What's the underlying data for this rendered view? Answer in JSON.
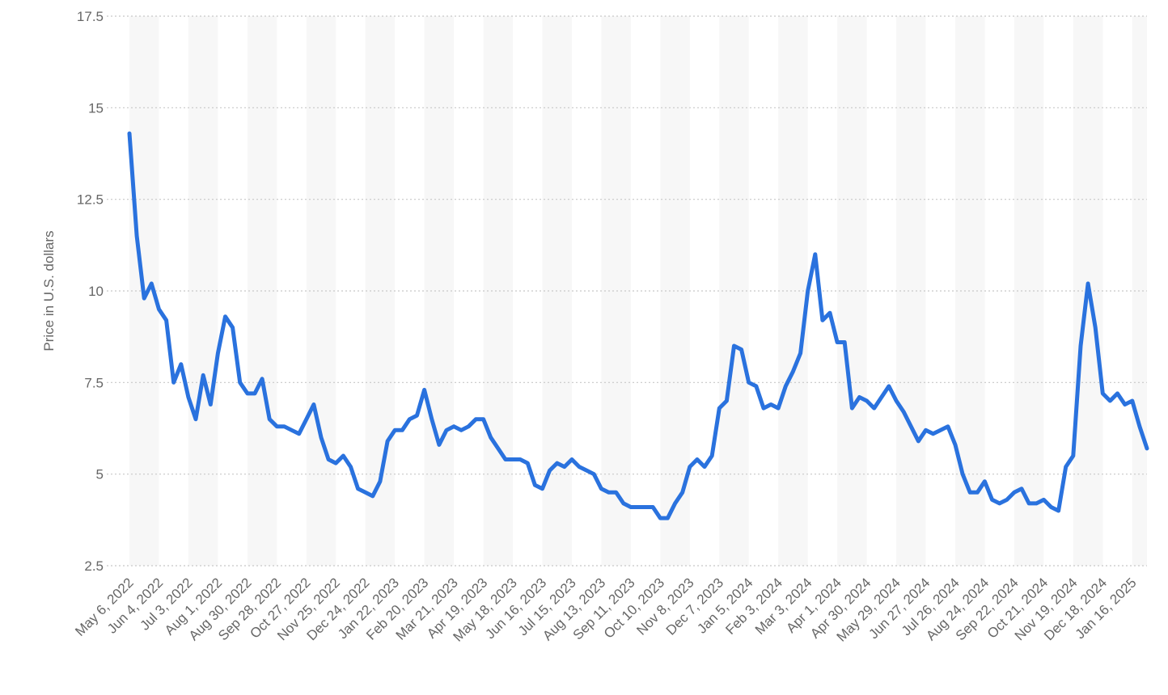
{
  "chart_data": {
    "type": "line",
    "y_label": "Price in U.S. dollars",
    "categories": [
      "May 6, 2022",
      null,
      null,
      null,
      "Jun 4, 2022",
      null,
      null,
      null,
      "Jul 3, 2022",
      null,
      null,
      null,
      "Aug 1, 2022",
      null,
      null,
      null,
      "Aug 30, 2022",
      null,
      null,
      null,
      "Sep 28, 2022",
      null,
      null,
      null,
      "Oct 27, 2022",
      null,
      null,
      null,
      "Nov 25, 2022",
      null,
      null,
      null,
      "Dec 24, 2022",
      null,
      null,
      null,
      "Jan 22, 2023",
      null,
      null,
      null,
      "Feb 20, 2023",
      null,
      null,
      null,
      "Mar 21, 2023",
      null,
      null,
      null,
      "Apr 19, 2023",
      null,
      null,
      null,
      "May 18, 2023",
      null,
      null,
      null,
      "Jun 16, 2023",
      null,
      null,
      null,
      "Jul 15, 2023",
      null,
      null,
      null,
      "Aug 13, 2023",
      null,
      null,
      null,
      "Sep 11, 2023",
      null,
      null,
      null,
      "Oct 10, 2023",
      null,
      null,
      null,
      "Nov 8, 2023",
      null,
      null,
      null,
      "Dec 7, 2023",
      null,
      null,
      null,
      "Jan 5, 2024",
      null,
      null,
      null,
      "Feb 3, 2024",
      null,
      null,
      null,
      "Mar 3, 2024",
      null,
      null,
      null,
      "Apr 1, 2024",
      null,
      null,
      null,
      "Apr 30, 2024",
      null,
      null,
      null,
      "May 29, 2024",
      null,
      null,
      null,
      "Jun 27, 2024",
      null,
      null,
      null,
      "Jul 26, 2024",
      null,
      null,
      null,
      "Aug 24, 2024",
      null,
      null,
      null,
      "Sep 22, 2024",
      null,
      null,
      null,
      "Oct 21, 2024",
      null,
      null,
      null,
      "Nov 19, 2024",
      null,
      null,
      null,
      "Dec 18, 2024",
      null,
      null,
      null,
      "Jan 16, 2025",
      null,
      null
    ],
    "series": [
      {
        "name": "Price",
        "color": "#2a72de",
        "values": [
          14.3,
          11.5,
          9.8,
          10.2,
          9.5,
          9.2,
          7.5,
          8.0,
          7.1,
          6.5,
          7.7,
          6.9,
          8.3,
          9.3,
          9.0,
          7.5,
          7.2,
          7.2,
          7.6,
          6.5,
          6.3,
          6.3,
          6.2,
          6.1,
          6.5,
          6.9,
          6.0,
          5.4,
          5.3,
          5.5,
          5.2,
          4.6,
          4.5,
          4.4,
          4.8,
          5.9,
          6.2,
          6.2,
          6.5,
          6.6,
          7.3,
          6.5,
          5.8,
          6.2,
          6.3,
          6.2,
          6.3,
          6.5,
          6.5,
          6.0,
          5.7,
          5.4,
          5.4,
          5.4,
          5.3,
          4.7,
          4.6,
          5.1,
          5.3,
          5.2,
          5.4,
          5.2,
          5.1,
          5.0,
          4.6,
          4.5,
          4.5,
          4.2,
          4.1,
          4.1,
          4.1,
          4.1,
          3.8,
          3.8,
          4.2,
          4.5,
          5.2,
          5.4,
          5.2,
          5.5,
          6.8,
          7.0,
          8.5,
          8.4,
          7.5,
          7.4,
          6.8,
          6.9,
          6.8,
          7.4,
          7.8,
          8.3,
          10.0,
          11.0,
          9.2,
          9.4,
          8.6,
          8.6,
          6.8,
          7.1,
          7.0,
          6.8,
          7.1,
          7.4,
          7.0,
          6.7,
          6.3,
          5.9,
          6.2,
          6.1,
          6.2,
          6.3,
          5.8,
          5.0,
          4.5,
          4.5,
          4.8,
          4.3,
          4.2,
          4.3,
          4.5,
          4.6,
          4.2,
          4.2,
          4.3,
          4.1,
          4.0,
          5.2,
          5.5,
          8.5,
          10.2,
          9.0,
          7.2,
          7.0,
          7.2,
          6.9,
          7.0,
          6.3,
          5.7
        ]
      }
    ],
    "ylim": [
      2.5,
      17.5
    ],
    "yticks": [
      2.5,
      5,
      7.5,
      10,
      12.5,
      15,
      17.5
    ],
    "grid": true
  }
}
